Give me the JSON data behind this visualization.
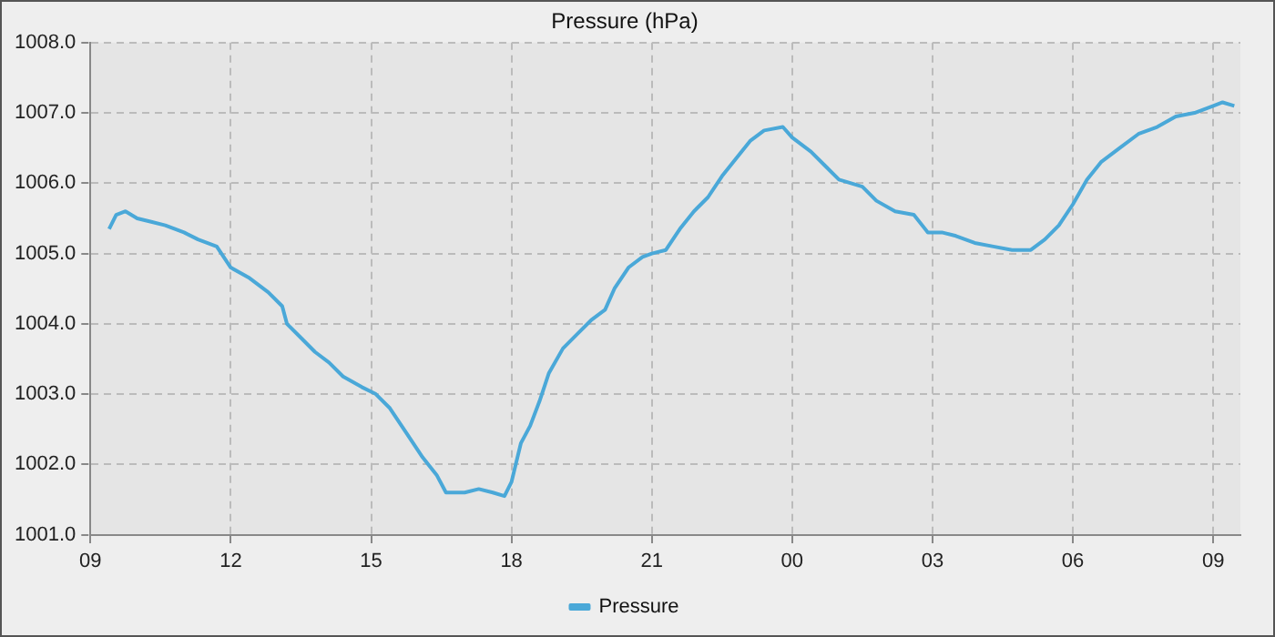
{
  "chart_data": {
    "type": "line",
    "title": "Pressure (hPa)",
    "legend": "bottom",
    "grid": true,
    "marker": "none",
    "line_style": "solid",
    "xlim": [
      9,
      33.58
    ],
    "ylim": [
      1001,
      1008
    ],
    "xticks": [
      {
        "value": 9,
        "label": "09"
      },
      {
        "value": 12,
        "label": "12"
      },
      {
        "value": 15,
        "label": "15"
      },
      {
        "value": 18,
        "label": "18"
      },
      {
        "value": 21,
        "label": "21"
      },
      {
        "value": 24,
        "label": "00"
      },
      {
        "value": 27,
        "label": "03"
      },
      {
        "value": 30,
        "label": "06"
      },
      {
        "value": 33,
        "label": "09"
      }
    ],
    "yticks": [
      {
        "value": 1001,
        "label": "1001.0"
      },
      {
        "value": 1002,
        "label": "1002.0"
      },
      {
        "value": 1003,
        "label": "1003.0"
      },
      {
        "value": 1004,
        "label": "1004.0"
      },
      {
        "value": 1005,
        "label": "1005.0"
      },
      {
        "value": 1006,
        "label": "1006.0"
      },
      {
        "value": 1007,
        "label": "1007.0"
      },
      {
        "value": 1008,
        "label": "1008.0"
      }
    ],
    "series": [
      {
        "name": "Pressure",
        "color": "#4aa8d8",
        "x": [
          9.4,
          9.55,
          9.75,
          10.0,
          10.3,
          10.6,
          11.0,
          11.3,
          11.7,
          12.0,
          12.4,
          12.8,
          13.1,
          13.2,
          13.5,
          13.8,
          14.1,
          14.4,
          14.8,
          15.1,
          15.4,
          15.8,
          16.1,
          16.4,
          16.6,
          17.0,
          17.3,
          17.6,
          17.85,
          18.0,
          18.2,
          18.4,
          18.6,
          18.8,
          19.1,
          19.4,
          19.7,
          20.0,
          20.2,
          20.5,
          20.8,
          21.0,
          21.3,
          21.6,
          21.9,
          22.2,
          22.5,
          22.8,
          23.1,
          23.4,
          23.8,
          24.0,
          24.4,
          24.7,
          25.0,
          25.5,
          25.8,
          26.2,
          26.6,
          26.9,
          27.2,
          27.5,
          27.9,
          28.3,
          28.7,
          29.1,
          29.4,
          29.7,
          30.0,
          30.3,
          30.6,
          31.0,
          31.4,
          31.8,
          32.2,
          32.6,
          33.0,
          33.2,
          33.45
        ],
        "values": [
          1005.35,
          1005.55,
          1005.6,
          1005.5,
          1005.45,
          1005.4,
          1005.3,
          1005.2,
          1005.1,
          1004.8,
          1004.65,
          1004.45,
          1004.25,
          1004.0,
          1003.8,
          1003.6,
          1003.45,
          1003.25,
          1003.1,
          1003.0,
          1002.8,
          1002.4,
          1002.1,
          1001.85,
          1001.6,
          1001.6,
          1001.65,
          1001.6,
          1001.55,
          1001.75,
          1002.3,
          1002.55,
          1002.9,
          1003.3,
          1003.65,
          1003.85,
          1004.05,
          1004.2,
          1004.5,
          1004.8,
          1004.95,
          1005.0,
          1005.05,
          1005.35,
          1005.6,
          1005.8,
          1006.1,
          1006.35,
          1006.6,
          1006.75,
          1006.8,
          1006.65,
          1006.45,
          1006.25,
          1006.05,
          1005.95,
          1005.75,
          1005.6,
          1005.55,
          1005.3,
          1005.3,
          1005.25,
          1005.15,
          1005.1,
          1005.05,
          1005.05,
          1005.2,
          1005.4,
          1005.7,
          1006.05,
          1006.3,
          1006.5,
          1006.7,
          1006.8,
          1006.95,
          1007.0,
          1007.1,
          1007.15,
          1007.1
        ]
      }
    ]
  }
}
